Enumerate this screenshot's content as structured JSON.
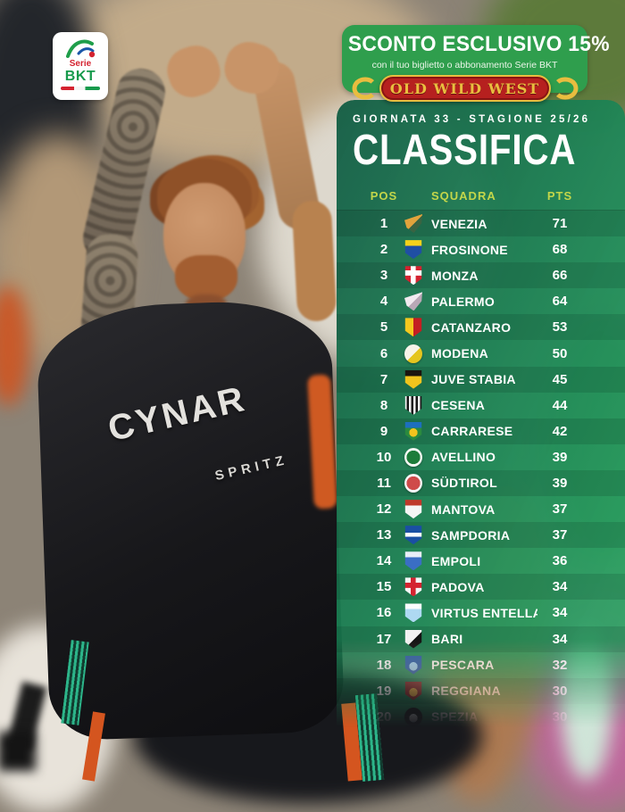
{
  "theme": {
    "panel_green_dark": "#115c43",
    "panel_green_bright": "#2fae68",
    "accent_lime": "#c3d64a",
    "banner_green": "#2f9e4d",
    "oww_red": "#b6201f",
    "oww_gold": "#e9bd3f",
    "text_white": "#ffffff"
  },
  "league_logo": {
    "serie": "Serie",
    "bkt": "BKT"
  },
  "promo": {
    "headline": "SCONTO ESCLUSIVO 15%",
    "subline": "con il tuo biglietto o abbonamento Serie BKT",
    "brand": "OLD WILD WEST"
  },
  "photo": {
    "jersey_sponsor": "CYNAR",
    "jersey_sponsor_sub": "SPRITZ"
  },
  "table": {
    "meta": "GIORNATA 33 - STAGIONE 25/26",
    "title": "CLASSIFICA",
    "columns": {
      "pos": "POS",
      "team": "SQUADRA",
      "pts": "PTS"
    },
    "rows": [
      {
        "pos": "1",
        "team": "VENEZIA",
        "pts": "71",
        "crest": {
          "shape": "wing",
          "pattern": "diag",
          "colors": [
            "#e2a33c",
            "#3a6342"
          ]
        }
      },
      {
        "pos": "2",
        "team": "FROSINONE",
        "pts": "68",
        "crest": {
          "shape": "shield",
          "pattern": "band-top",
          "colors": [
            "#1f4fa3",
            "#f7d21a"
          ]
        }
      },
      {
        "pos": "3",
        "team": "MONZA",
        "pts": "66",
        "crest": {
          "shape": "shield",
          "pattern": "cross",
          "colors": [
            "#d42330",
            "#ffffff"
          ]
        }
      },
      {
        "pos": "4",
        "team": "PALERMO",
        "pts": "64",
        "crest": {
          "shape": "wing",
          "pattern": "diag",
          "colors": [
            "#f2eaf0",
            "#b9a8b6"
          ]
        }
      },
      {
        "pos": "5",
        "team": "CATANZARO",
        "pts": "53",
        "crest": {
          "shape": "shield",
          "pattern": "split",
          "colors": [
            "#f5c81e",
            "#c41e22"
          ]
        }
      },
      {
        "pos": "6",
        "team": "MODENA",
        "pts": "50",
        "crest": {
          "shape": "circle",
          "pattern": "diag",
          "colors": [
            "#f7f4ea",
            "#e5c51f"
          ]
        }
      },
      {
        "pos": "7",
        "team": "JUVE STABIA",
        "pts": "45",
        "crest": {
          "shape": "shield",
          "pattern": "band-top",
          "colors": [
            "#f0c41d",
            "#1a150f"
          ]
        }
      },
      {
        "pos": "8",
        "team": "CESENA",
        "pts": "44",
        "crest": {
          "shape": "shield",
          "pattern": "stripes",
          "colors": [
            "#f5f5f5",
            "#161616"
          ]
        }
      },
      {
        "pos": "9",
        "team": "CARRARESE",
        "pts": "42",
        "crest": {
          "shape": "shield",
          "pattern": "dot",
          "colors": [
            "#2b8a3e",
            "#1d6fbe",
            "#f2c41d"
          ]
        }
      },
      {
        "pos": "10",
        "team": "AVELLINO",
        "pts": "39",
        "crest": {
          "shape": "circle",
          "pattern": "ring",
          "colors": [
            "#f2f7f2",
            "#1d7c3a"
          ]
        }
      },
      {
        "pos": "11",
        "team": "SÜDTIROL",
        "pts": "39",
        "crest": {
          "shape": "circle",
          "pattern": "ring",
          "colors": [
            "#f4f4f4",
            "#cf4a4a"
          ]
        }
      },
      {
        "pos": "12",
        "team": "MANTOVA",
        "pts": "37",
        "crest": {
          "shape": "shield",
          "pattern": "band-top",
          "colors": [
            "#f5f5f5",
            "#c0392b"
          ]
        }
      },
      {
        "pos": "13",
        "team": "SAMPDORIA",
        "pts": "37",
        "crest": {
          "shape": "shield",
          "pattern": "band-mid",
          "colors": [
            "#1a4fa3",
            "#ffffff"
          ]
        }
      },
      {
        "pos": "14",
        "team": "EMPOLI",
        "pts": "36",
        "crest": {
          "shape": "shield",
          "pattern": "band-top",
          "colors": [
            "#3a6ec4",
            "#e8eef8"
          ]
        }
      },
      {
        "pos": "15",
        "team": "PADOVA",
        "pts": "34",
        "crest": {
          "shape": "shield",
          "pattern": "cross",
          "colors": [
            "#f5f5f5",
            "#d42330"
          ]
        }
      },
      {
        "pos": "16",
        "team": "VIRTUS ENTELLA",
        "pts": "34",
        "crest": {
          "shape": "shield",
          "pattern": "band-top",
          "colors": [
            "#aed9f2",
            "#fafcfd"
          ]
        }
      },
      {
        "pos": "17",
        "team": "BARI",
        "pts": "34",
        "crest": {
          "shape": "shield",
          "pattern": "diag",
          "colors": [
            "#f2f2f2",
            "#141414"
          ]
        }
      },
      {
        "pos": "18",
        "team": "PESCARA",
        "pts": "32",
        "crest": {
          "shape": "shield",
          "pattern": "dot",
          "colors": [
            "#2d5fa8",
            "#2d5fa8",
            "#9fd0ee"
          ]
        }
      },
      {
        "pos": "19",
        "team": "REGGIANA",
        "pts": "30",
        "crest": {
          "shape": "shield",
          "pattern": "dot",
          "colors": [
            "#8e2a2a",
            "#8e2a2a",
            "#e0a23c"
          ]
        }
      },
      {
        "pos": "20",
        "team": "SPEZIA",
        "pts": "30",
        "crest": {
          "shape": "circle",
          "pattern": "dot",
          "colors": [
            "#141414",
            "#141414",
            "#f0f0f0"
          ]
        }
      }
    ]
  },
  "chart_data": {
    "type": "table",
    "title": "CLASSIFICA",
    "subtitle": "GIORNATA 33 - STAGIONE 25/26",
    "columns": [
      "POS",
      "SQUADRA",
      "PTS"
    ],
    "rows": [
      [
        1,
        "VENEZIA",
        71
      ],
      [
        2,
        "FROSINONE",
        68
      ],
      [
        3,
        "MONZA",
        66
      ],
      [
        4,
        "PALERMO",
        64
      ],
      [
        5,
        "CATANZARO",
        53
      ],
      [
        6,
        "MODENA",
        50
      ],
      [
        7,
        "JUVE STABIA",
        45
      ],
      [
        8,
        "CESENA",
        44
      ],
      [
        9,
        "CARRARESE",
        42
      ],
      [
        10,
        "AVELLINO",
        39
      ],
      [
        11,
        "SÜDTIROL",
        39
      ],
      [
        12,
        "MANTOVA",
        37
      ],
      [
        13,
        "SAMPDORIA",
        37
      ],
      [
        14,
        "EMPOLI",
        36
      ],
      [
        15,
        "PADOVA",
        34
      ],
      [
        16,
        "VIRTUS ENTELLA",
        34
      ],
      [
        17,
        "BARI",
        34
      ],
      [
        18,
        "PESCARA",
        32
      ],
      [
        19,
        "REGGIANA",
        30
      ],
      [
        20,
        "SPEZIA",
        30
      ]
    ]
  }
}
